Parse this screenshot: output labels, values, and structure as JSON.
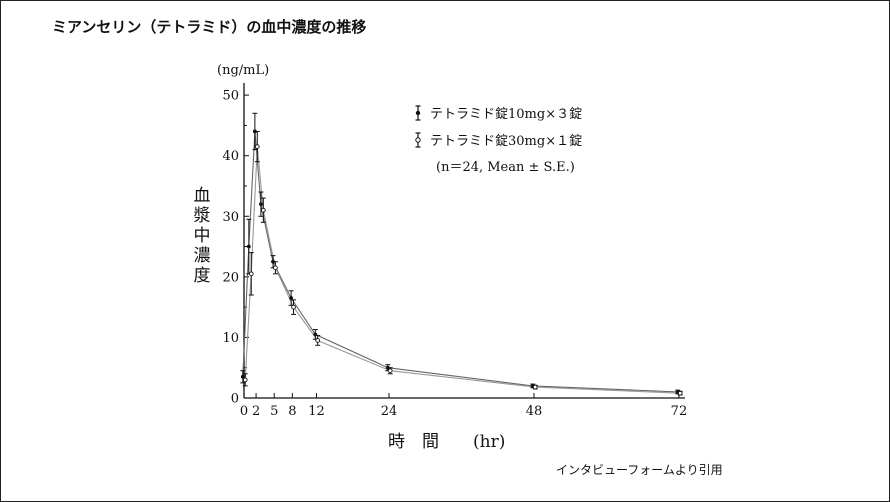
{
  "page": {
    "title": "ミアンセリン（テトラミド）の血中濃度の推移",
    "source": "インタビューフォームより引用"
  },
  "chart_data": {
    "type": "line",
    "unit_label": "(ng/mL)",
    "ylabel": "血漿中濃度",
    "xlabel": "時　間　　(hr)",
    "x_ticks": [
      0,
      2,
      5,
      8,
      12,
      24,
      48,
      72
    ],
    "y_ticks": [
      0,
      10,
      20,
      30,
      40,
      50
    ],
    "xlim": [
      0,
      73
    ],
    "ylim": [
      0,
      52
    ],
    "legend_position": "top-right",
    "note": "(n＝24, Mean ± S.E.)",
    "series": [
      {
        "name": "テトラミド錠10mg×３錠",
        "marker": "filled",
        "x": [
          0,
          1,
          2,
          3,
          5,
          8,
          12,
          24,
          48,
          72
        ],
        "y": [
          3.5,
          25,
          44,
          32,
          22.5,
          16.5,
          10.5,
          5,
          2,
          1
        ],
        "err": [
          1.0,
          4.5,
          3.0,
          2.0,
          1.0,
          1.2,
          0.8,
          0.5,
          0.3,
          0.3
        ]
      },
      {
        "name": "テトラミド錠30mg×１錠",
        "marker": "open",
        "x": [
          0,
          1,
          2,
          3,
          5,
          8,
          12,
          24,
          48,
          72
        ],
        "y": [
          3,
          20.5,
          41.5,
          31,
          21.5,
          15,
          9.5,
          4.5,
          1.8,
          0.8
        ],
        "err": [
          1.0,
          3.5,
          2.5,
          2.0,
          1.0,
          1.2,
          0.8,
          0.5,
          0.3,
          0.3
        ]
      }
    ]
  }
}
